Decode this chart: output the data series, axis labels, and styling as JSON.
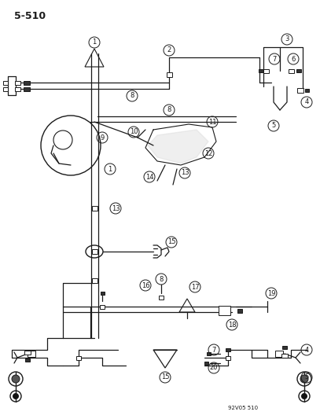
{
  "page_label": "5-510",
  "bg_color": "#ffffff",
  "line_color": "#1a1a1a",
  "fig_width": 4.07,
  "fig_height": 5.33,
  "dpi": 100,
  "watermark": "92V05 510",
  "label_fontsize": 6.0
}
